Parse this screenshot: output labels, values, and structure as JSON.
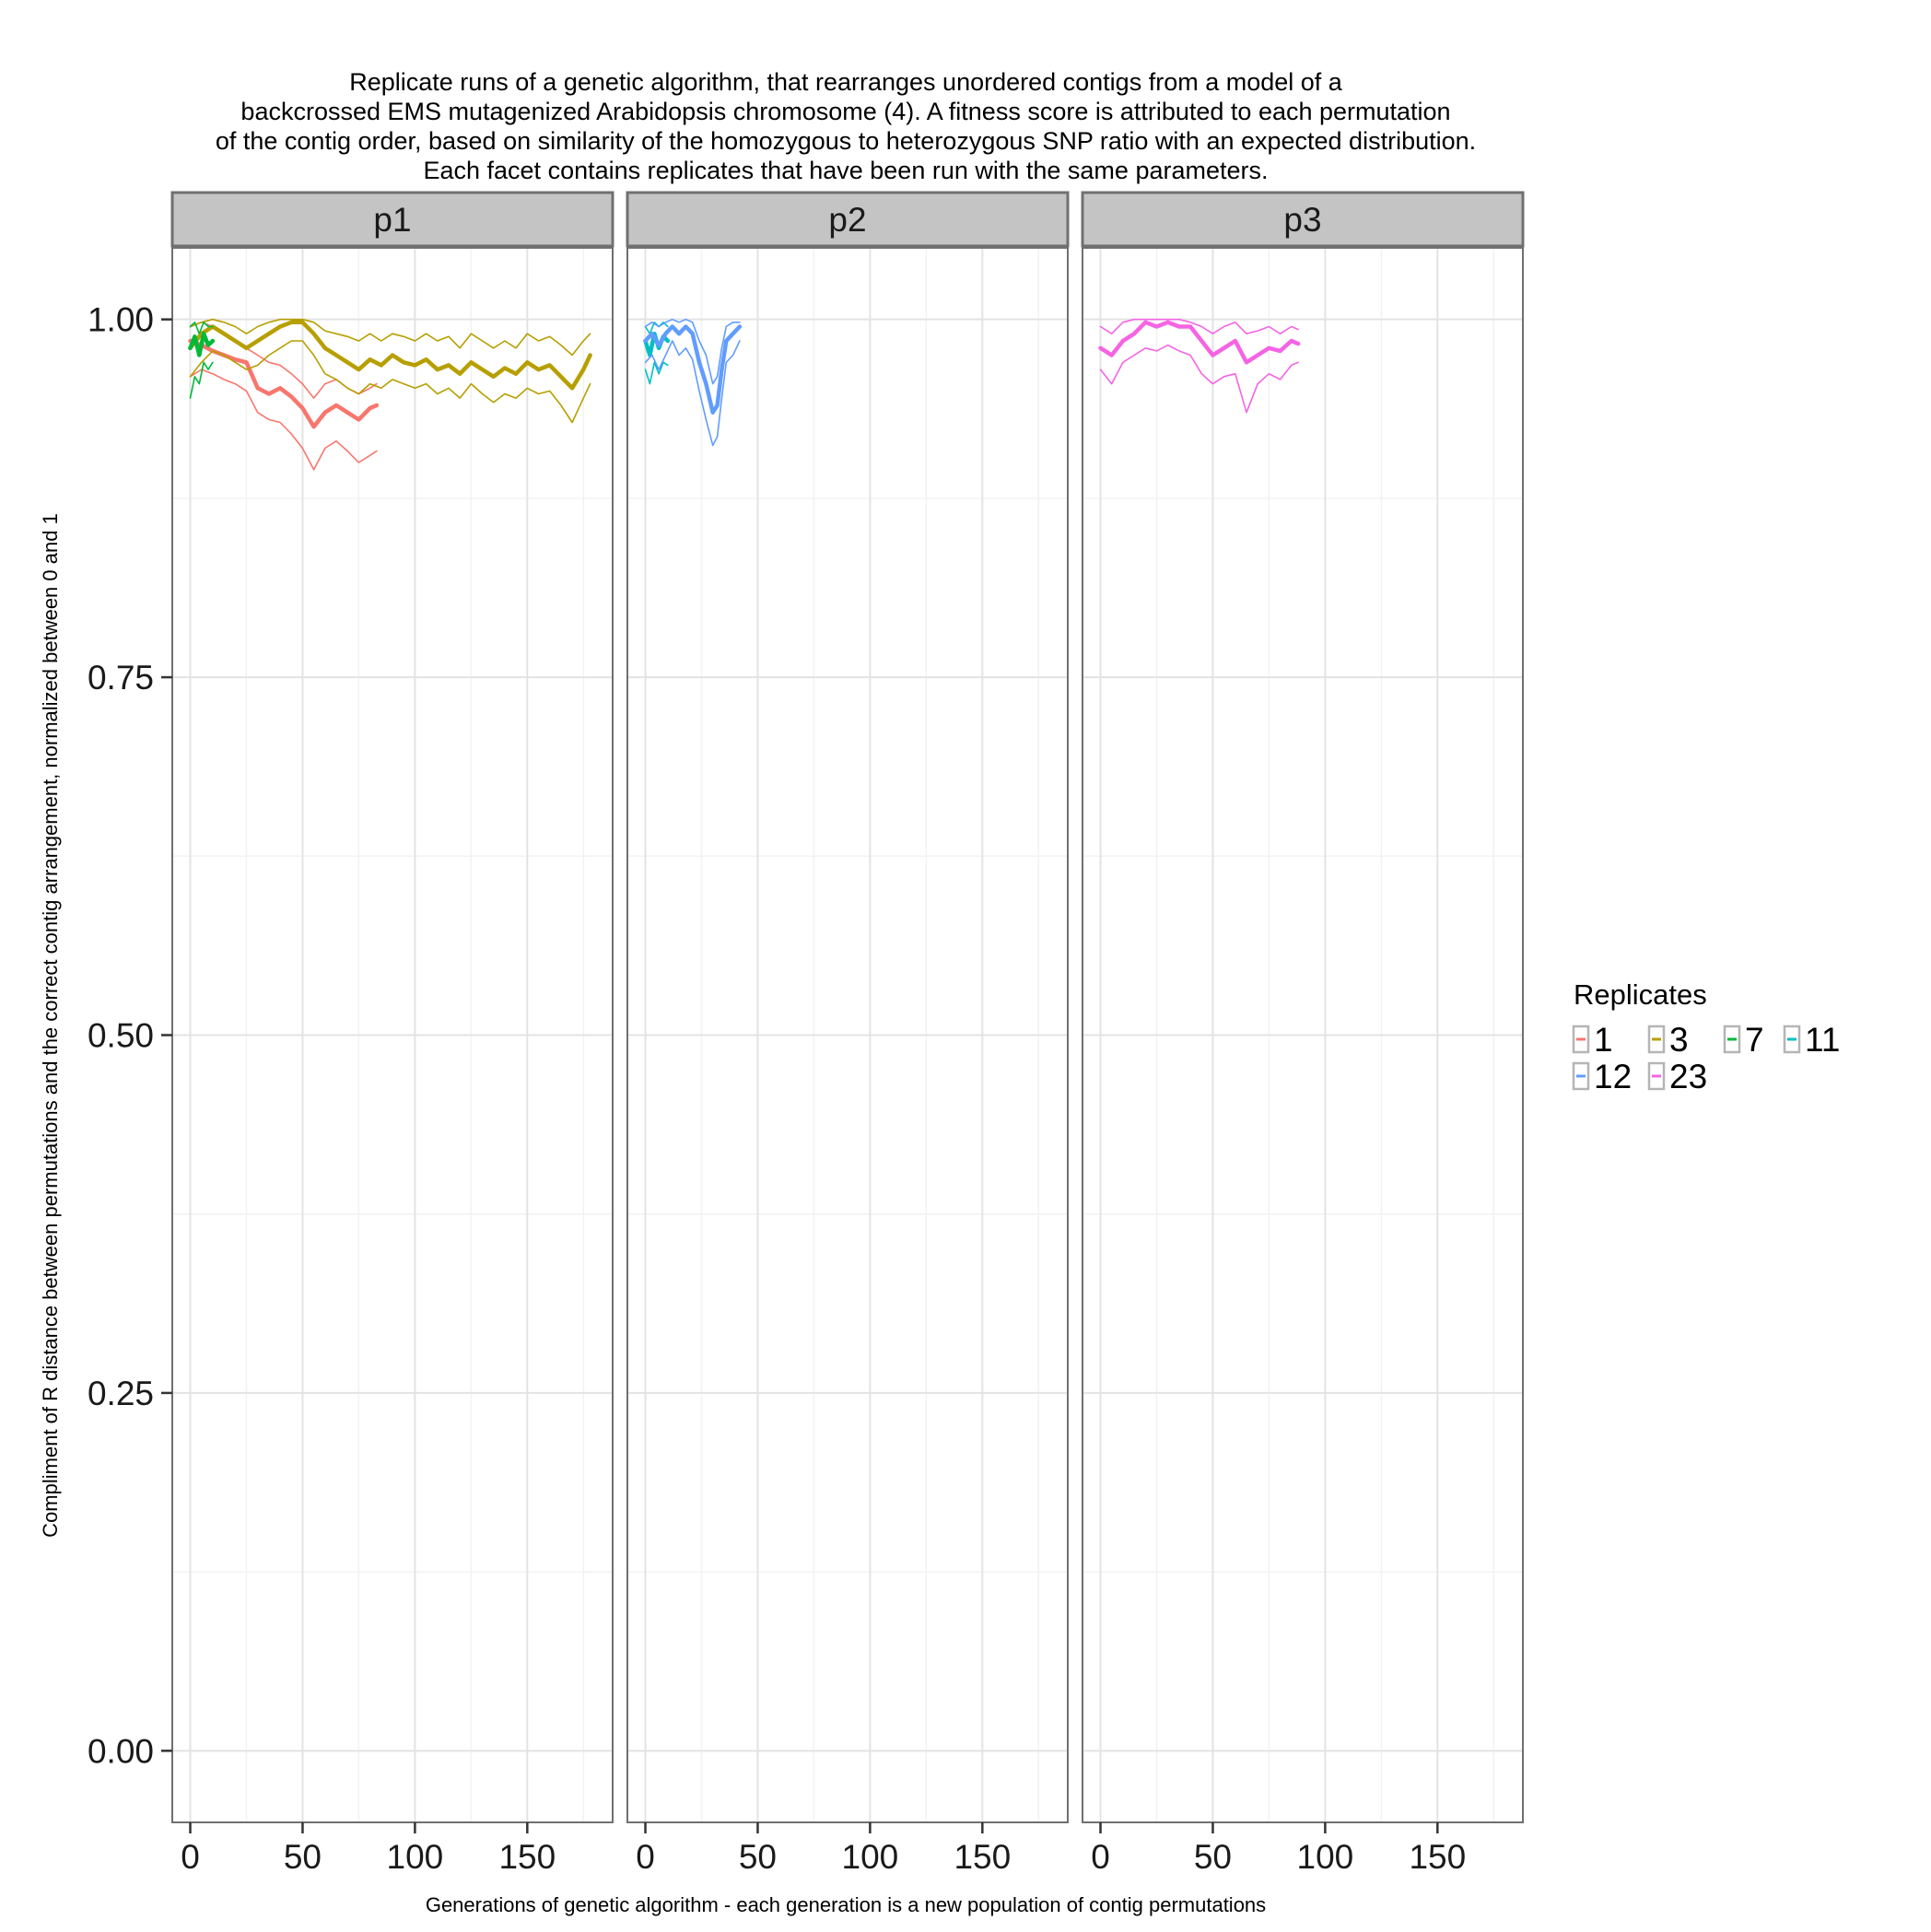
{
  "title_lines": [
    "Replicate runs of a genetic algorithm, that rearranges unordered contigs from a model of a",
    "backcrossed EMS mutagenized Arabidopsis chromosome (4). A fitness score is attributed to each permutation",
    "of the contig order, based on similarity of the homozygous to heterozygous SNP ratio with an expected distribution.",
    "Each facet contains replicates that have been run with the same parameters."
  ],
  "chart_data": {
    "type": "line",
    "xlabel": "Generations of genetic algorithm - each generation is a new population of contig permutations",
    "ylabel": "Compliment of R distance between permutations and the correct contig arrangement, normalized between 0 and 1",
    "xlim": [
      -8,
      188
    ],
    "ylim": [
      -0.05,
      1.05
    ],
    "x_ticks": [
      0,
      50,
      100,
      150
    ],
    "x_tick_labels": [
      "0",
      "50",
      "100",
      "150"
    ],
    "y_ticks": [
      0,
      0.25,
      0.5,
      0.75,
      1
    ],
    "y_tick_labels": [
      "0.00",
      "0.25",
      "0.50",
      "0.75",
      "1.00"
    ],
    "grid": true,
    "legend": {
      "title": "Replicates",
      "placement": "right",
      "entries": [
        {
          "label": "1",
          "color": "#F8766D"
        },
        {
          "label": "3",
          "color": "#B79F00"
        },
        {
          "label": "7",
          "color": "#00BA38"
        },
        {
          "label": "11",
          "color": "#00BFC4"
        },
        {
          "label": "12",
          "color": "#619CFF"
        },
        {
          "label": "23",
          "color": "#F564E3"
        }
      ]
    },
    "facets": [
      {
        "label": "p1",
        "series": [
          {
            "name": "1",
            "color": "#F8766D",
            "role": "mean",
            "x": [
              0,
              5,
              10,
              15,
              20,
              25,
              30,
              35,
              40,
              45,
              50,
              55,
              60,
              65,
              70,
              75,
              80,
              83
            ],
            "y": [
              0.985,
              0.982,
              0.978,
              0.975,
              0.972,
              0.97,
              0.952,
              0.948,
              0.952,
              0.946,
              0.938,
              0.925,
              0.935,
              0.94,
              0.935,
              0.93,
              0.938,
              0.94
            ]
          },
          {
            "name": "1",
            "color": "#F8766D",
            "role": "upper",
            "x": [
              0,
              5,
              10,
              15,
              20,
              25,
              30,
              35,
              40,
              45,
              50,
              55,
              60,
              65,
              70,
              75,
              80,
              83
            ],
            "y": [
              0.995,
              0.998,
              0.995,
              0.99,
              0.985,
              0.98,
              0.975,
              0.97,
              0.968,
              0.962,
              0.955,
              0.945,
              0.955,
              0.958,
              0.952,
              0.948,
              0.952,
              0.955
            ]
          },
          {
            "name": "1",
            "color": "#F8766D",
            "role": "lower",
            "x": [
              0,
              5,
              10,
              15,
              20,
              25,
              30,
              35,
              40,
              45,
              50,
              55,
              60,
              65,
              70,
              75,
              80,
              83
            ],
            "y": [
              0.96,
              0.965,
              0.962,
              0.958,
              0.955,
              0.95,
              0.935,
              0.93,
              0.928,
              0.92,
              0.91,
              0.895,
              0.91,
              0.915,
              0.908,
              0.9,
              0.905,
              0.908
            ]
          },
          {
            "name": "3",
            "color": "#B79F00",
            "role": "mean",
            "x": [
              0,
              5,
              10,
              15,
              20,
              25,
              30,
              35,
              40,
              45,
              50,
              55,
              60,
              65,
              70,
              75,
              80,
              85,
              90,
              95,
              100,
              105,
              110,
              115,
              120,
              125,
              130,
              135,
              140,
              145,
              150,
              155,
              160,
              165,
              170,
              175,
              178
            ],
            "y": [
              0.98,
              0.99,
              0.995,
              0.99,
              0.985,
              0.98,
              0.985,
              0.99,
              0.995,
              0.998,
              0.998,
              0.99,
              0.98,
              0.975,
              0.97,
              0.965,
              0.972,
              0.968,
              0.975,
              0.97,
              0.968,
              0.972,
              0.965,
              0.968,
              0.962,
              0.97,
              0.965,
              0.96,
              0.966,
              0.962,
              0.97,
              0.965,
              0.968,
              0.96,
              0.952,
              0.965,
              0.975
            ]
          },
          {
            "name": "3",
            "color": "#B79F00",
            "role": "upper",
            "x": [
              0,
              5,
              10,
              15,
              20,
              25,
              30,
              35,
              40,
              45,
              50,
              55,
              60,
              65,
              70,
              75,
              80,
              85,
              90,
              95,
              100,
              105,
              110,
              115,
              120,
              125,
              130,
              135,
              140,
              145,
              150,
              155,
              160,
              165,
              170,
              175,
              178
            ],
            "y": [
              0.995,
              0.998,
              1.0,
              0.998,
              0.995,
              0.99,
              0.995,
              0.998,
              1.0,
              1.0,
              1.0,
              0.998,
              0.992,
              0.99,
              0.988,
              0.985,
              0.99,
              0.985,
              0.99,
              0.988,
              0.985,
              0.99,
              0.985,
              0.988,
              0.98,
              0.99,
              0.985,
              0.98,
              0.985,
              0.98,
              0.99,
              0.985,
              0.988,
              0.982,
              0.975,
              0.985,
              0.99
            ]
          },
          {
            "name": "3",
            "color": "#B79F00",
            "role": "lower",
            "x": [
              0,
              5,
              10,
              15,
              20,
              25,
              30,
              35,
              40,
              45,
              50,
              55,
              60,
              65,
              70,
              75,
              80,
              85,
              90,
              95,
              100,
              105,
              110,
              115,
              120,
              125,
              130,
              135,
              140,
              145,
              150,
              155,
              160,
              165,
              170,
              175,
              178
            ],
            "y": [
              0.96,
              0.97,
              0.978,
              0.975,
              0.97,
              0.965,
              0.968,
              0.975,
              0.98,
              0.985,
              0.985,
              0.975,
              0.962,
              0.958,
              0.952,
              0.948,
              0.955,
              0.952,
              0.958,
              0.955,
              0.952,
              0.955,
              0.948,
              0.952,
              0.945,
              0.955,
              0.948,
              0.942,
              0.948,
              0.945,
              0.952,
              0.948,
              0.95,
              0.94,
              0.928,
              0.945,
              0.955
            ]
          },
          {
            "name": "7",
            "color": "#00BA38",
            "role": "mean",
            "x": [
              0,
              2,
              4,
              6,
              8,
              10
            ],
            "y": [
              0.98,
              0.988,
              0.975,
              0.99,
              0.982,
              0.985
            ]
          },
          {
            "name": "7",
            "color": "#00BA38",
            "role": "upper",
            "x": [
              0,
              2,
              4,
              6,
              8,
              10
            ],
            "y": [
              0.995,
              0.998,
              0.99,
              0.998,
              0.995,
              0.995
            ]
          },
          {
            "name": "7",
            "color": "#00BA38",
            "role": "lower",
            "x": [
              0,
              2,
              4,
              6,
              8,
              10
            ],
            "y": [
              0.945,
              0.96,
              0.955,
              0.97,
              0.965,
              0.97
            ]
          }
        ]
      },
      {
        "label": "p2",
        "series": [
          {
            "name": "11",
            "color": "#00BFC4",
            "role": "mean",
            "x": [
              0,
              2,
              4,
              6,
              8,
              10
            ],
            "y": [
              0.985,
              0.975,
              0.99,
              0.98,
              0.988,
              0.985
            ]
          },
          {
            "name": "11",
            "color": "#00BFC4",
            "role": "upper",
            "x": [
              0,
              2,
              4,
              6,
              8,
              10
            ],
            "y": [
              0.995,
              0.99,
              0.998,
              0.995,
              0.998,
              0.995
            ]
          },
          {
            "name": "11",
            "color": "#00BFC4",
            "role": "lower",
            "x": [
              0,
              2,
              4,
              6,
              8,
              10
            ],
            "y": [
              0.965,
              0.955,
              0.97,
              0.962,
              0.97,
              0.968
            ]
          },
          {
            "name": "12",
            "color": "#619CFF",
            "role": "mean",
            "x": [
              0,
              3,
              6,
              9,
              12,
              15,
              18,
              21,
              24,
              27,
              30,
              32,
              34,
              36,
              39,
              42
            ],
            "y": [
              0.985,
              0.99,
              0.982,
              0.99,
              0.995,
              0.99,
              0.995,
              0.99,
              0.97,
              0.955,
              0.935,
              0.94,
              0.965,
              0.985,
              0.99,
              0.995
            ]
          },
          {
            "name": "12",
            "color": "#619CFF",
            "role": "upper",
            "x": [
              0,
              3,
              6,
              9,
              12,
              15,
              18,
              21,
              24,
              27,
              30,
              32,
              34,
              36,
              39,
              42
            ],
            "y": [
              0.995,
              0.998,
              0.995,
              0.998,
              1.0,
              0.998,
              1.0,
              0.998,
              0.985,
              0.975,
              0.955,
              0.96,
              0.98,
              0.995,
              0.998,
              0.998
            ]
          },
          {
            "name": "12",
            "color": "#619CFF",
            "role": "lower",
            "x": [
              0,
              3,
              6,
              9,
              12,
              15,
              18,
              21,
              24,
              27,
              30,
              32,
              34,
              36,
              39,
              42
            ],
            "y": [
              0.97,
              0.975,
              0.965,
              0.975,
              0.985,
              0.975,
              0.98,
              0.972,
              0.95,
              0.93,
              0.912,
              0.918,
              0.945,
              0.97,
              0.975,
              0.985
            ]
          }
        ]
      },
      {
        "label": "p3",
        "series": [
          {
            "name": "23",
            "color": "#F564E3",
            "role": "mean",
            "x": [
              0,
              5,
              10,
              15,
              20,
              25,
              30,
              35,
              40,
              45,
              50,
              55,
              60,
              65,
              70,
              75,
              80,
              85,
              88
            ],
            "y": [
              0.98,
              0.975,
              0.985,
              0.99,
              0.998,
              0.995,
              0.998,
              0.995,
              0.995,
              0.985,
              0.975,
              0.98,
              0.985,
              0.97,
              0.975,
              0.98,
              0.978,
              0.985,
              0.983
            ]
          },
          {
            "name": "23",
            "color": "#F564E3",
            "role": "upper",
            "x": [
              0,
              5,
              10,
              15,
              20,
              25,
              30,
              35,
              40,
              45,
              50,
              55,
              60,
              65,
              70,
              75,
              80,
              85,
              88
            ],
            "y": [
              0.995,
              0.99,
              0.998,
              1.0,
              1.0,
              1.0,
              1.0,
              1.0,
              0.998,
              0.995,
              0.99,
              0.995,
              0.998,
              0.99,
              0.992,
              0.995,
              0.99,
              0.995,
              0.993
            ]
          },
          {
            "name": "23",
            "color": "#F564E3",
            "role": "lower",
            "x": [
              0,
              5,
              10,
              15,
              20,
              25,
              30,
              35,
              40,
              45,
              50,
              55,
              60,
              65,
              70,
              75,
              80,
              85,
              88
            ],
            "y": [
              0.965,
              0.955,
              0.97,
              0.975,
              0.98,
              0.978,
              0.982,
              0.978,
              0.975,
              0.962,
              0.955,
              0.96,
              0.962,
              0.935,
              0.955,
              0.962,
              0.958,
              0.968,
              0.97
            ]
          }
        ]
      }
    ]
  }
}
